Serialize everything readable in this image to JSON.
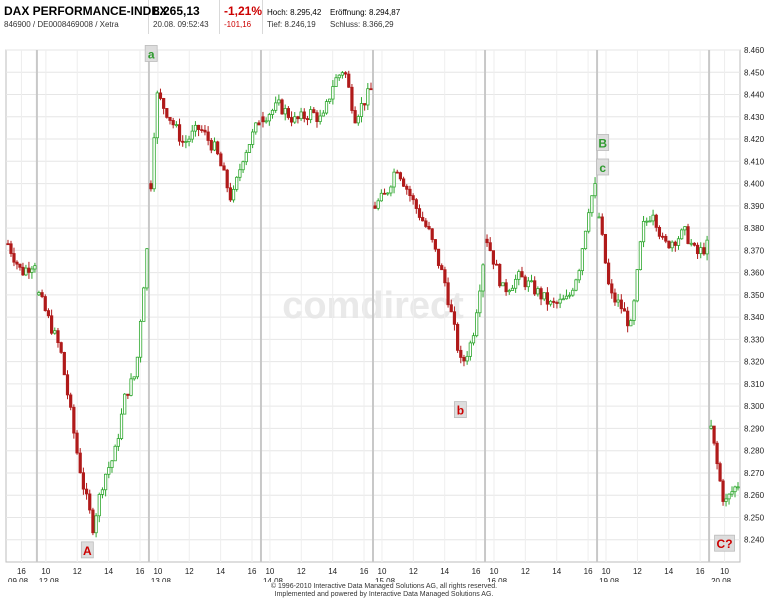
{
  "header": {
    "index_name": "DAX PERFORMANCE-INDEX",
    "ids": "846900 / DE0008469008 / Xetra",
    "price": "8.265,13",
    "datetime": "20.08. 09:52:43",
    "change_pct": "-1,21%",
    "change_abs": "-101,16",
    "high_label": "Hoch:",
    "high_value": "8.295,42",
    "open_label": "Eröffnung:",
    "open_value": "8.294,87",
    "low_label": "Tief:",
    "low_value": "8.246,19",
    "close_label": "Schluss:",
    "close_value": "8.366,29"
  },
  "chart_data": {
    "type": "candlestick",
    "title": "",
    "xlabel": "",
    "ylabel": "",
    "ylim": [
      8230,
      8460
    ],
    "yticks": [
      8240,
      8250,
      8260,
      8270,
      8280,
      8290,
      8300,
      8310,
      8320,
      8330,
      8340,
      8350,
      8360,
      8370,
      8380,
      8390,
      8400,
      8410,
      8420,
      8430,
      8440,
      8450,
      8460
    ],
    "ytick_labels": [
      "8.240",
      "8.250",
      "8.260",
      "8.270",
      "8.280",
      "8.290",
      "8.300",
      "8.310",
      "8.320",
      "8.330",
      "8.340",
      "8.350",
      "8.360",
      "8.370",
      "8.380",
      "8.390",
      "8.400",
      "8.410",
      "8.420",
      "8.430",
      "8.440",
      "8.450",
      "8.460"
    ],
    "grid": true,
    "up_color": "#2fa82f",
    "down_color": "#b01a1a",
    "days": [
      {
        "label": "09.08.",
        "hours": [
          "16"
        ],
        "path": [
          [
            0,
            8373
          ],
          [
            0.5,
            8360
          ],
          [
            1,
            8365
          ]
        ]
      },
      {
        "label": "12.08.",
        "hours": [
          "10",
          "12",
          "14",
          "16"
        ],
        "path": [
          [
            0,
            8350
          ],
          [
            0.2,
            8325
          ],
          [
            0.35,
            8280
          ],
          [
            0.42,
            8262
          ],
          [
            0.5,
            8246
          ],
          [
            0.6,
            8268
          ],
          [
            0.7,
            8278
          ],
          [
            0.8,
            8305
          ],
          [
            0.9,
            8315
          ],
          [
            0.95,
            8345
          ],
          [
            1,
            8370
          ],
          [
            1.03,
            8358
          ]
        ]
      },
      {
        "label": "13.08.",
        "hours": [
          "10",
          "12",
          "14",
          "16"
        ],
        "path": [
          [
            0,
            8400
          ],
          [
            0.05,
            8440
          ],
          [
            0.15,
            8432
          ],
          [
            0.3,
            8418
          ],
          [
            0.45,
            8425
          ],
          [
            0.6,
            8415
          ],
          [
            0.75,
            8392
          ],
          [
            0.85,
            8412
          ],
          [
            1,
            8428
          ]
        ]
      },
      {
        "label": "14.08.",
        "hours": [
          "10",
          "12",
          "14",
          "16"
        ],
        "path": [
          [
            0,
            8430
          ],
          [
            0.15,
            8435
          ],
          [
            0.3,
            8428
          ],
          [
            0.45,
            8432
          ],
          [
            0.55,
            8428
          ],
          [
            0.65,
            8445
          ],
          [
            0.75,
            8452
          ],
          [
            0.85,
            8430
          ],
          [
            0.95,
            8438
          ],
          [
            1,
            8442
          ]
        ]
      },
      {
        "label": "15.08.",
        "hours": [
          "10",
          "12",
          "14",
          "16"
        ],
        "path": [
          [
            0,
            8390
          ],
          [
            0.1,
            8395
          ],
          [
            0.2,
            8408
          ],
          [
            0.35,
            8392
          ],
          [
            0.5,
            8378
          ],
          [
            0.65,
            8355
          ],
          [
            0.8,
            8318
          ],
          [
            0.9,
            8330
          ],
          [
            1,
            8365
          ]
        ]
      },
      {
        "label": "16.08.",
        "hours": [
          "10",
          "12",
          "14",
          "16"
        ],
        "path": [
          [
            0,
            8375
          ],
          [
            0.15,
            8352
          ],
          [
            0.3,
            8358
          ],
          [
            0.45,
            8352
          ],
          [
            0.6,
            8345
          ],
          [
            0.75,
            8348
          ],
          [
            0.85,
            8362
          ],
          [
            0.95,
            8392
          ],
          [
            1,
            8398
          ]
        ]
      },
      {
        "label": "19.08.",
        "hours": [
          "10",
          "12",
          "14",
          "16"
        ],
        "path": [
          [
            0,
            8385
          ],
          [
            0.1,
            8350
          ],
          [
            0.2,
            8345
          ],
          [
            0.3,
            8335
          ],
          [
            0.4,
            8380
          ],
          [
            0.5,
            8388
          ],
          [
            0.6,
            8372
          ],
          [
            0.7,
            8375
          ],
          [
            0.8,
            8378
          ],
          [
            0.9,
            8368
          ],
          [
            1,
            8372
          ]
        ]
      },
      {
        "label": "20.08.",
        "hours": [
          "10"
        ],
        "path": [
          [
            0,
            8290
          ],
          [
            0.3,
            8268
          ],
          [
            0.5,
            8256
          ],
          [
            0.8,
            8262
          ],
          [
            1,
            8265
          ]
        ]
      }
    ],
    "annotations": [
      {
        "text": "a",
        "color": "#2f9a2f",
        "day": 2,
        "frac": 0.02,
        "y": 8458
      },
      {
        "text": "A",
        "color": "#cc0000",
        "day": 1,
        "frac": 0.45,
        "y": 8235
      },
      {
        "text": "b",
        "color": "#cc0000",
        "day": 4,
        "frac": 0.78,
        "y": 8298
      },
      {
        "text": "B",
        "color": "#2f9a2f",
        "day": 6,
        "frac": 0.05,
        "y": 8418
      },
      {
        "text": "c",
        "color": "#2f9a2f",
        "day": 6,
        "frac": 0.05,
        "y": 8407
      },
      {
        "text": "C?",
        "color": "#cc0000",
        "day": 7,
        "frac": 0.5,
        "y": 8238
      }
    ]
  },
  "watermark": "comdirect",
  "footer": {
    "line1": "© 1996-2010 Interactive Data Managed Solutions AG, all rights reserved.",
    "line2": "Implemented and powered by Interactive Data Managed Solutions AG."
  }
}
